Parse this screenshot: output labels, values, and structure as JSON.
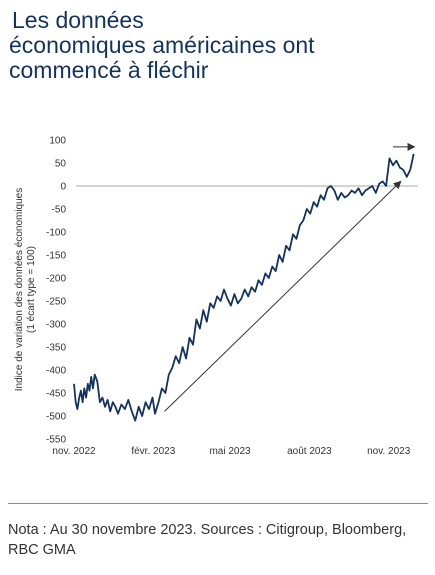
{
  "title": {
    "line1": "Les données",
    "line2": "économiques américaines ont",
    "line3": "commencé à fléchir"
  },
  "note": "Nota : Au 30 novembre 2023. Sources : Citigroup, Bloomberg, RBC GMA",
  "colors": {
    "title": "#14335c",
    "series": "#14335c",
    "axis": "#999999",
    "text": "#333333"
  },
  "chart_data": {
    "type": "line",
    "title": "",
    "ylabel": "Indice de variation des données économiques (1 écart type = 100)",
    "ylabel_lines": [
      "Indice de variation des données économiques",
      "(1 écart type = 100)"
    ],
    "xlabel": "",
    "ylim": [
      -550,
      100
    ],
    "yticks": [
      100,
      50,
      0,
      -50,
      -100,
      -150,
      -200,
      -250,
      -300,
      -350,
      -400,
      -450,
      -500,
      -550
    ],
    "xlim": [
      "2022-11-01",
      "2023-12-05"
    ],
    "xticks": [
      {
        "date": "2022-11-01",
        "label": "nov. 2022"
      },
      {
        "date": "2023-02-01",
        "label": "févr. 2023"
      },
      {
        "date": "2023-05-01",
        "label": "mai 2023"
      },
      {
        "date": "2023-08-01",
        "label": "août 2023"
      },
      {
        "date": "2023-11-01",
        "label": "nov. 2023"
      }
    ],
    "zero_line": true,
    "grid": false,
    "legend": "none",
    "series": [
      {
        "x": [
          "2022-11-01",
          "2022-11-03",
          "2022-11-05",
          "2022-11-07",
          "2022-11-09",
          "2022-11-11",
          "2022-11-13",
          "2022-11-15",
          "2022-11-17",
          "2022-11-19",
          "2022-11-21",
          "2022-11-23",
          "2022-11-25",
          "2022-11-28",
          "2022-12-01",
          "2022-12-04",
          "2022-12-07",
          "2022-12-10",
          "2022-12-13",
          "2022-12-16",
          "2022-12-19",
          "2022-12-22",
          "2022-12-26",
          "2022-12-30",
          "2023-01-03",
          "2023-01-07",
          "2023-01-11",
          "2023-01-15",
          "2023-01-19",
          "2023-01-23",
          "2023-01-27",
          "2023-01-31",
          "2023-02-03",
          "2023-02-07",
          "2023-02-11",
          "2023-02-15",
          "2023-02-19",
          "2023-02-23",
          "2023-02-27",
          "2023-03-03",
          "2023-03-07",
          "2023-03-11",
          "2023-03-15",
          "2023-03-19",
          "2023-03-23",
          "2023-03-27",
          "2023-03-31",
          "2023-04-04",
          "2023-04-08",
          "2023-04-12",
          "2023-04-16",
          "2023-04-20",
          "2023-04-24",
          "2023-04-28",
          "2023-05-02",
          "2023-05-06",
          "2023-05-10",
          "2023-05-14",
          "2023-05-18",
          "2023-05-22",
          "2023-05-26",
          "2023-05-30",
          "2023-06-03",
          "2023-06-07",
          "2023-06-11",
          "2023-06-15",
          "2023-06-19",
          "2023-06-23",
          "2023-06-27",
          "2023-07-01",
          "2023-07-05",
          "2023-07-09",
          "2023-07-13",
          "2023-07-17",
          "2023-07-21",
          "2023-07-25",
          "2023-07-29",
          "2023-08-02",
          "2023-08-06",
          "2023-08-10",
          "2023-08-14",
          "2023-08-18",
          "2023-08-22",
          "2023-08-26",
          "2023-08-30",
          "2023-09-03",
          "2023-09-07",
          "2023-09-11",
          "2023-09-15",
          "2023-09-19",
          "2023-09-23",
          "2023-09-27",
          "2023-10-01",
          "2023-10-05",
          "2023-10-09",
          "2023-10-13",
          "2023-10-17",
          "2023-10-21",
          "2023-10-25",
          "2023-10-29",
          "2023-11-02",
          "2023-11-06",
          "2023-11-10",
          "2023-11-14",
          "2023-11-18",
          "2023-11-22",
          "2023-11-26",
          "2023-11-30"
        ],
        "y": [
          -430,
          -470,
          -485,
          -460,
          -445,
          -470,
          -440,
          -460,
          -430,
          -445,
          -415,
          -440,
          -410,
          -425,
          -470,
          -460,
          -480,
          -465,
          -490,
          -470,
          -480,
          -495,
          -475,
          -485,
          -465,
          -490,
          -510,
          -480,
          -500,
          -470,
          -485,
          -460,
          -495,
          -470,
          -440,
          -450,
          -410,
          -395,
          -370,
          -385,
          -350,
          -375,
          -330,
          -345,
          -290,
          -310,
          -270,
          -295,
          -255,
          -265,
          -240,
          -250,
          -225,
          -245,
          -260,
          -235,
          -255,
          -245,
          -225,
          -240,
          -220,
          -230,
          -205,
          -215,
          -190,
          -200,
          -175,
          -185,
          -150,
          -165,
          -130,
          -140,
          -105,
          -115,
          -85,
          -75,
          -50,
          -60,
          -35,
          -45,
          -20,
          -30,
          -5,
          0,
          -10,
          -30,
          -15,
          -25,
          -20,
          -10,
          -15,
          -5,
          -20,
          -10,
          -5,
          0,
          -15,
          5,
          10,
          0,
          60,
          45,
          55,
          40,
          35,
          20,
          35,
          70
        ]
      }
    ],
    "annotations": [
      {
        "type": "arrow",
        "from": [
          "2023-02-14",
          -490
        ],
        "to": [
          "2023-11-15",
          10
        ]
      },
      {
        "type": "arrow",
        "from": [
          "2023-11-06",
          85
        ],
        "to": [
          "2023-12-01",
          85
        ]
      }
    ]
  }
}
